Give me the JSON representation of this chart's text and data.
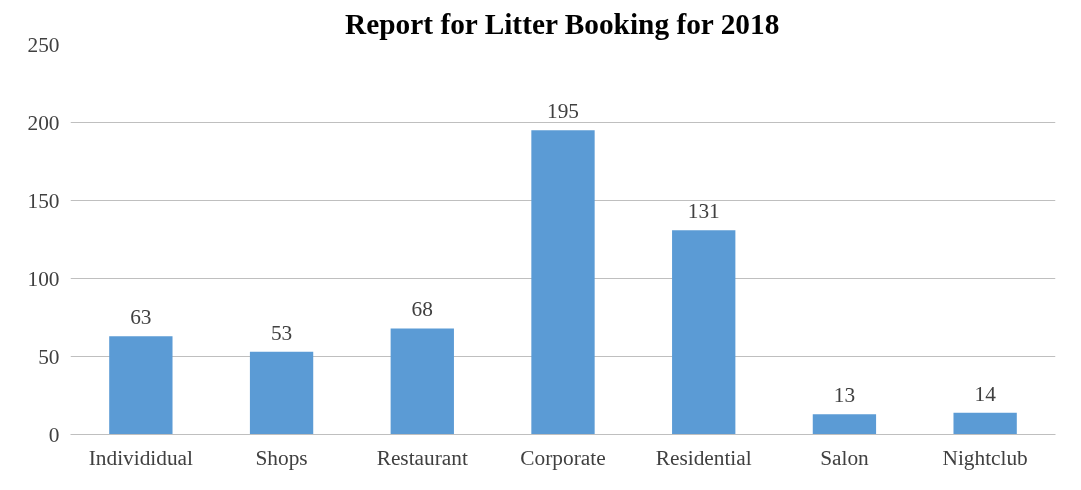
{
  "chart_data": {
    "type": "bar",
    "title": "Report for Litter Booking for 2018",
    "categories": [
      "Individidual",
      "Shops",
      "Restaurant",
      "Corporate",
      "Residential",
      "Salon",
      "Nightclub"
    ],
    "values": [
      63,
      53,
      68,
      195,
      131,
      13,
      14
    ],
    "color": "#5b9bd5",
    "ylim": [
      0,
      250
    ],
    "yticks": [
      0,
      50,
      100,
      150,
      200,
      250
    ],
    "grid": "y",
    "data_labels": true
  }
}
